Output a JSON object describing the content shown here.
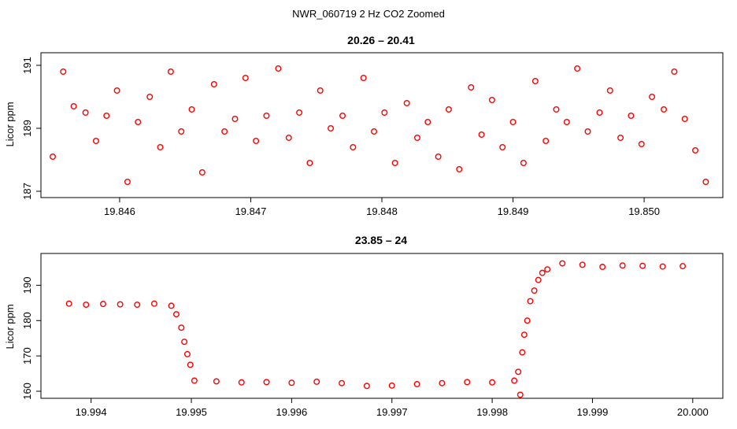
{
  "title": "NWR_060719  2 Hz CO2 Zoomed",
  "colors": {
    "points": "#ff0000",
    "axis": "#000000",
    "background": "#ffffff"
  },
  "chart_data": [
    {
      "type": "scatter",
      "title": "20.26 – 20.41",
      "xlabel": "",
      "ylabel": "Licor ppm",
      "xlim": [
        19.8454,
        19.8506
      ],
      "ylim": [
        186.8,
        191.4
      ],
      "xticks": [
        19.846,
        19.847,
        19.848,
        19.849,
        19.85
      ],
      "xtick_labels": [
        "19.846",
        "19.847",
        "19.848",
        "19.849",
        "19.850"
      ],
      "yticks": [
        187,
        189,
        191
      ],
      "ytick_labels": [
        "187",
        "189",
        "191"
      ],
      "grid": false,
      "legend": "none",
      "marker": "open-circle",
      "series": [
        {
          "x": [
            19.84549,
            19.84557,
            19.84565,
            19.84574,
            19.84582,
            19.8459,
            19.84598,
            19.84606,
            19.84614,
            19.84623,
            19.84631,
            19.84639,
            19.84647,
            19.84655,
            19.84663,
            19.84672,
            19.8468,
            19.84688,
            19.84696,
            19.84704,
            19.84712,
            19.84721,
            19.84729,
            19.84737,
            19.84745,
            19.84753,
            19.84761,
            19.8477,
            19.84778,
            19.84786,
            19.84794,
            19.84802,
            19.8481,
            19.84819,
            19.84827,
            19.84835,
            19.84843,
            19.84851,
            19.84859,
            19.84868,
            19.84876,
            19.84884,
            19.84892,
            19.849,
            19.84908,
            19.84917,
            19.84925,
            19.84933,
            19.84941,
            19.84949,
            19.84957,
            19.84966,
            19.84974,
            19.84982,
            19.8499,
            19.84998,
            19.85006,
            19.85015,
            19.85023,
            19.85031,
            19.85039,
            19.85047
          ],
          "y": [
            188.1,
            190.8,
            189.7,
            189.5,
            188.6,
            189.4,
            190.2,
            187.3,
            189.2,
            190.0,
            188.4,
            190.8,
            188.9,
            189.6,
            187.6,
            190.4,
            188.9,
            189.3,
            190.6,
            188.6,
            189.4,
            190.9,
            188.7,
            189.5,
            187.9,
            190.2,
            189.0,
            189.4,
            188.4,
            190.6,
            188.9,
            189.5,
            187.9,
            189.8,
            188.7,
            189.2,
            188.1,
            189.6,
            187.7,
            190.3,
            188.8,
            189.9,
            188.4,
            189.2,
            187.9,
            190.5,
            188.6,
            189.6,
            189.2,
            190.9,
            188.9,
            189.5,
            190.2,
            188.7,
            189.4,
            188.5,
            190.0,
            189.6,
            190.8,
            189.3,
            188.3,
            187.3
          ]
        }
      ]
    },
    {
      "type": "scatter",
      "title": "23.85 – 24",
      "xlabel": "",
      "ylabel": "Licor ppm",
      "xlim": [
        19.9935,
        20.0003
      ],
      "ylim": [
        158.0,
        199.0
      ],
      "xticks": [
        19.994,
        19.995,
        19.996,
        19.997,
        19.998,
        19.999,
        20.0
      ],
      "xtick_labels": [
        "19.994",
        "19.995",
        "19.996",
        "19.997",
        "19.998",
        "19.999",
        "20.000"
      ],
      "yticks": [
        160,
        170,
        180,
        190
      ],
      "ytick_labels": [
        "160",
        "170",
        "180",
        "190"
      ],
      "grid": false,
      "legend": "none",
      "marker": "open-circle",
      "series": [
        {
          "x": [
            19.99378,
            19.99395,
            19.99412,
            19.99429,
            19.99446,
            19.99463,
            19.9948,
            19.99485,
            19.9949,
            19.99493,
            19.99496,
            19.99499,
            19.99503,
            19.99525,
            19.9955,
            19.99575,
            19.996,
            19.99625,
            19.9965,
            19.99675,
            19.997,
            19.99725,
            19.9975,
            19.99775,
            19.998,
            19.99822,
            19.99826,
            19.99828,
            19.9983,
            19.99832,
            19.99835,
            19.99838,
            19.99842,
            19.99846,
            19.9985,
            19.99855,
            19.9987,
            19.9989,
            19.9991,
            19.9993,
            19.9995,
            19.9997,
            19.9999
          ],
          "y": [
            184.8,
            184.5,
            184.7,
            184.6,
            184.5,
            184.8,
            184.2,
            181.8,
            178.0,
            174.0,
            170.5,
            167.5,
            163.0,
            162.8,
            162.5,
            162.6,
            162.4,
            162.7,
            162.3,
            161.5,
            161.6,
            162.0,
            162.3,
            162.6,
            162.5,
            163.0,
            165.5,
            159.0,
            171.0,
            176.0,
            180.0,
            185.5,
            188.5,
            191.5,
            193.5,
            194.5,
            196.2,
            195.8,
            195.2,
            195.6,
            195.5,
            195.3,
            195.4
          ]
        }
      ]
    }
  ]
}
